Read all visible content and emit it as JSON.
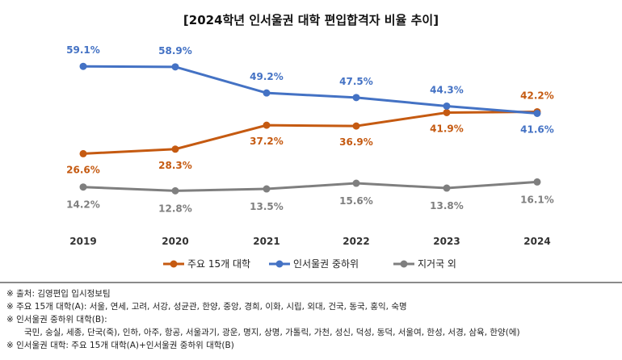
{
  "chart_data": {
    "type": "line",
    "title": "[2024학년 인서울권 대학 편입합격자 비율 추이]",
    "categories": [
      "2019",
      "2020",
      "2021",
      "2022",
      "2023",
      "2024"
    ],
    "series": [
      {
        "name": "주요 15개 대학",
        "color": "#c55a11",
        "values": [
          26.6,
          28.3,
          37.2,
          36.9,
          41.9,
          42.2
        ]
      },
      {
        "name": "인서울권 중하위",
        "color": "#4472c4",
        "values": [
          59.1,
          58.9,
          49.2,
          47.5,
          44.3,
          41.6
        ]
      },
      {
        "name": "지거국 외",
        "color": "#7f7f7f",
        "values": [
          14.2,
          12.8,
          13.5,
          15.6,
          13.8,
          16.1
        ]
      }
    ],
    "value_format": "%",
    "grid": false,
    "legend_position": "bottom"
  },
  "notes": [
    "※ 출처: 김영편입 입시정보팀",
    "※ 주요 15개 대학(A): 서울, 연세, 고려, 서강, 성균관, 한양, 중앙, 경희, 이화, 시립, 외대, 건국, 동국, 홍익, 숙명",
    "※ 인서울권 중하위 대학(B):",
    "국민, 숭실, 세종, 단국(죽), 인하, 아주, 항공, 서울과기, 광운, 명지, 상명, 가톨릭, 가천, 성신, 덕성, 동덕, 서울여, 한성, 서경, 삼육, 한양(에)",
    "※ 인서울권 대학: 주요 15개 대학(A)+인서울권 중하위 대학(B)"
  ]
}
